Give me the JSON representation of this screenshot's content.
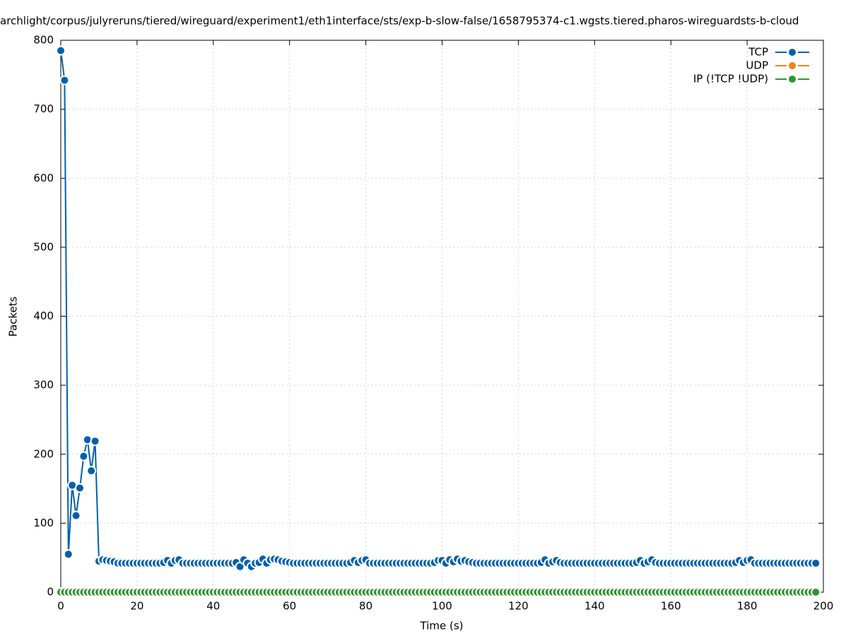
{
  "chart_data": {
    "type": "line",
    "title": "archlight/corpus/julyreruns/tiered/wireguard/experiment1/eth1interface/sts/exp-b-slow-false/1658795374-c1.wgsts.tiered.pharos-wireguardsts-b-cloud",
    "x_label": "Time (s)",
    "y_label": "Packets",
    "xlim": [
      0,
      200
    ],
    "ylim": [
      0,
      800
    ],
    "xticks": [
      0,
      20,
      40,
      60,
      80,
      100,
      120,
      140,
      160,
      180,
      200
    ],
    "yticks": [
      0,
      100,
      200,
      300,
      400,
      500,
      600,
      700,
      800
    ],
    "grid": true,
    "legend": "upper right",
    "x": [
      0,
      1,
      2,
      3,
      4,
      5,
      6,
      7,
      8,
      9,
      10,
      11,
      12,
      13,
      14,
      15,
      16,
      17,
      18,
      19,
      20,
      21,
      22,
      23,
      24,
      25,
      26,
      27,
      28,
      29,
      30,
      31,
      32,
      33,
      34,
      35,
      36,
      37,
      38,
      39,
      40,
      41,
      42,
      43,
      44,
      45,
      46,
      47,
      48,
      49,
      50,
      51,
      52,
      53,
      54,
      55,
      56,
      57,
      58,
      59,
      60,
      61,
      62,
      63,
      64,
      65,
      66,
      67,
      68,
      69,
      70,
      71,
      72,
      73,
      74,
      75,
      76,
      77,
      78,
      79,
      80,
      81,
      82,
      83,
      84,
      85,
      86,
      87,
      88,
      89,
      90,
      91,
      92,
      93,
      94,
      95,
      96,
      97,
      98,
      99,
      100,
      101,
      102,
      103,
      104,
      105,
      106,
      107,
      108,
      109,
      110,
      111,
      112,
      113,
      114,
      115,
      116,
      117,
      118,
      119,
      120,
      121,
      122,
      123,
      124,
      125,
      126,
      127,
      128,
      129,
      130,
      131,
      132,
      133,
      134,
      135,
      136,
      137,
      138,
      139,
      140,
      141,
      142,
      143,
      144,
      145,
      146,
      147,
      148,
      149,
      150,
      151,
      152,
      153,
      154,
      155,
      156,
      157,
      158,
      159,
      160,
      161,
      162,
      163,
      164,
      165,
      166,
      167,
      168,
      169,
      170,
      171,
      172,
      173,
      174,
      175,
      176,
      177,
      178,
      179,
      180,
      181,
      182,
      183,
      184,
      185,
      186,
      187,
      188,
      189,
      190,
      191,
      192,
      193,
      194,
      195,
      196,
      197,
      198
    ],
    "series": [
      {
        "name": "TCP",
        "color": "#0060ad",
        "values": [
          785,
          742,
          55,
          155,
          111,
          151,
          197,
          221,
          176,
          219,
          45,
          47,
          46,
          45,
          44,
          42,
          42,
          42,
          42,
          42,
          42,
          42,
          42,
          42,
          42,
          42,
          42,
          43,
          46,
          42,
          46,
          47,
          42,
          42,
          42,
          42,
          42,
          42,
          42,
          42,
          42,
          42,
          42,
          42,
          42,
          42,
          43,
          37,
          47,
          42,
          37,
          42,
          43,
          48,
          42,
          47,
          48,
          47,
          45,
          44,
          43,
          42,
          42,
          42,
          42,
          42,
          42,
          42,
          42,
          42,
          42,
          42,
          42,
          42,
          42,
          42,
          43,
          46,
          43,
          46,
          47,
          42,
          42,
          42,
          42,
          42,
          42,
          42,
          42,
          42,
          42,
          42,
          42,
          42,
          42,
          42,
          42,
          42,
          43,
          46,
          46,
          42,
          47,
          44,
          48,
          45,
          46,
          44,
          43,
          42,
          42,
          42,
          42,
          42,
          42,
          42,
          42,
          42,
          42,
          42,
          42,
          42,
          42,
          42,
          42,
          42,
          43,
          47,
          42,
          44,
          46,
          43,
          42,
          42,
          42,
          42,
          42,
          42,
          42,
          42,
          42,
          42,
          42,
          42,
          42,
          42,
          42,
          42,
          42,
          42,
          42,
          43,
          46,
          42,
          44,
          47,
          43,
          42,
          42,
          42,
          42,
          42,
          42,
          42,
          42,
          42,
          42,
          42,
          42,
          42,
          42,
          42,
          42,
          42,
          42,
          42,
          42,
          43,
          46,
          43,
          46,
          47,
          42,
          42,
          42,
          42,
          42,
          42,
          42,
          42,
          42,
          42,
          42,
          42,
          42,
          42,
          42,
          42,
          42
        ]
      },
      {
        "name": "UDP",
        "color": "#f0821e",
        "values": [
          0,
          0,
          0,
          0,
          0,
          0,
          0,
          0,
          0,
          0,
          0,
          0,
          0,
          0,
          0,
          0,
          0,
          0,
          0,
          0,
          0,
          0,
          0,
          0,
          0,
          0,
          0,
          0,
          0,
          0,
          0,
          0,
          0,
          0,
          0,
          0,
          0,
          0,
          0,
          0,
          0,
          0,
          0,
          0,
          0,
          0,
          0,
          0,
          0,
          0,
          0,
          0,
          0,
          0,
          0,
          0,
          0,
          0,
          0,
          0,
          0,
          0,
          0,
          0,
          0,
          0,
          0,
          0,
          0,
          0,
          0,
          0,
          0,
          0,
          0,
          0,
          0,
          0,
          0,
          0,
          0,
          0,
          0,
          0,
          0,
          0,
          0,
          0,
          0,
          0,
          0,
          0,
          0,
          0,
          0,
          0,
          0,
          0,
          0,
          0,
          0,
          0,
          0,
          0,
          0,
          0,
          0,
          0,
          0,
          0,
          0,
          0,
          0,
          0,
          0,
          0,
          0,
          0,
          0,
          0,
          0,
          0,
          0,
          0,
          0,
          0,
          0,
          0,
          0,
          0,
          0,
          0,
          0,
          0,
          0,
          0,
          0,
          0,
          0,
          0,
          0,
          0,
          0,
          0,
          0,
          0,
          0,
          0,
          0,
          0,
          0,
          0,
          0,
          0,
          0,
          0,
          0,
          0,
          0,
          0,
          0,
          0,
          0,
          0,
          0,
          0,
          0,
          0,
          0,
          0,
          0,
          0,
          0,
          0,
          0,
          0,
          0,
          0,
          0,
          0,
          0,
          0,
          0,
          0,
          0,
          0,
          0,
          0,
          0,
          0,
          0,
          0,
          0,
          0,
          0,
          0,
          0,
          0,
          0
        ]
      },
      {
        "name": "IP (!TCP  !UDP)",
        "color": "#30952e",
        "values": [
          0,
          0,
          0,
          0,
          0,
          0,
          0,
          0,
          0,
          0,
          0,
          0,
          0,
          0,
          0,
          0,
          0,
          0,
          0,
          0,
          0,
          0,
          0,
          0,
          0,
          0,
          0,
          0,
          0,
          0,
          0,
          0,
          0,
          0,
          0,
          0,
          0,
          0,
          0,
          0,
          0,
          0,
          0,
          0,
          0,
          0,
          0,
          0,
          0,
          0,
          0,
          0,
          0,
          0,
          0,
          0,
          0,
          0,
          0,
          0,
          0,
          0,
          0,
          0,
          0,
          0,
          0,
          0,
          0,
          0,
          0,
          0,
          0,
          0,
          0,
          0,
          0,
          0,
          0,
          0,
          0,
          0,
          0,
          0,
          0,
          0,
          0,
          0,
          0,
          0,
          0,
          0,
          0,
          0,
          0,
          0,
          0,
          0,
          0,
          0,
          0,
          0,
          0,
          0,
          0,
          0,
          0,
          0,
          0,
          0,
          0,
          0,
          0,
          0,
          0,
          0,
          0,
          0,
          0,
          0,
          0,
          0,
          0,
          0,
          0,
          0,
          0,
          0,
          0,
          0,
          0,
          0,
          0,
          0,
          0,
          0,
          0,
          0,
          0,
          0,
          0,
          0,
          0,
          0,
          0,
          0,
          0,
          0,
          0,
          0,
          0,
          0,
          0,
          0,
          0,
          0,
          0,
          0,
          0,
          0,
          0,
          0,
          0,
          0,
          0,
          0,
          0,
          0,
          0,
          0,
          0,
          0,
          0,
          0,
          0,
          0,
          0,
          0,
          0,
          0,
          0,
          0,
          0,
          0,
          0,
          0,
          0,
          0,
          0,
          0,
          0,
          0,
          0,
          0,
          0,
          0,
          0,
          0,
          0
        ]
      }
    ]
  }
}
